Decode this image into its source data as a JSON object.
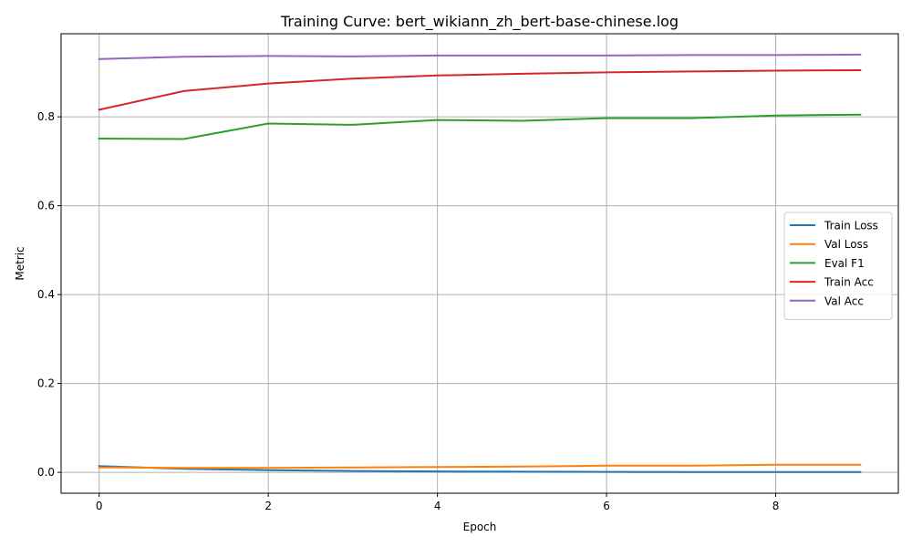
{
  "chart_data": {
    "type": "line",
    "title": "Training Curve: bert_wikiann_zh_bert-base-chinese.log",
    "xlabel": "Epoch",
    "ylabel": "Metric",
    "xlim": [
      -0.45,
      9.45
    ],
    "ylim": [
      -0.047,
      0.987
    ],
    "xticks": [
      0,
      2,
      4,
      6,
      8
    ],
    "yticks": [
      0.0,
      0.2,
      0.4,
      0.6,
      0.8
    ],
    "ytick_labels": [
      "0.0",
      "0.2",
      "0.4",
      "0.6",
      "0.8"
    ],
    "grid": true,
    "legend_position": "center-right",
    "x": [
      0,
      1,
      2,
      3,
      4,
      5,
      6,
      7,
      8,
      9
    ],
    "series": [
      {
        "name": "Train Loss",
        "color": "#1f77b4",
        "values": [
          0.014,
          0.008,
          0.005,
          0.003,
          0.002,
          0.0015,
          0.001,
          0.0008,
          0.0006,
          0.0005
        ]
      },
      {
        "name": "Val Loss",
        "color": "#ff7f0e",
        "values": [
          0.011,
          0.01,
          0.01,
          0.011,
          0.012,
          0.013,
          0.015,
          0.015,
          0.017,
          0.017
        ]
      },
      {
        "name": "Eval F1",
        "color": "#2ca02c",
        "values": [
          0.751,
          0.75,
          0.785,
          0.782,
          0.793,
          0.791,
          0.797,
          0.797,
          0.803,
          0.805
        ]
      },
      {
        "name": "Train Acc",
        "color": "#d62728",
        "values": [
          0.816,
          0.858,
          0.875,
          0.886,
          0.893,
          0.897,
          0.9,
          0.902,
          0.904,
          0.905
        ]
      },
      {
        "name": "Val Acc",
        "color": "#9467bd",
        "values": [
          0.93,
          0.935,
          0.937,
          0.936,
          0.938,
          0.938,
          0.938,
          0.939,
          0.939,
          0.94
        ]
      }
    ]
  }
}
